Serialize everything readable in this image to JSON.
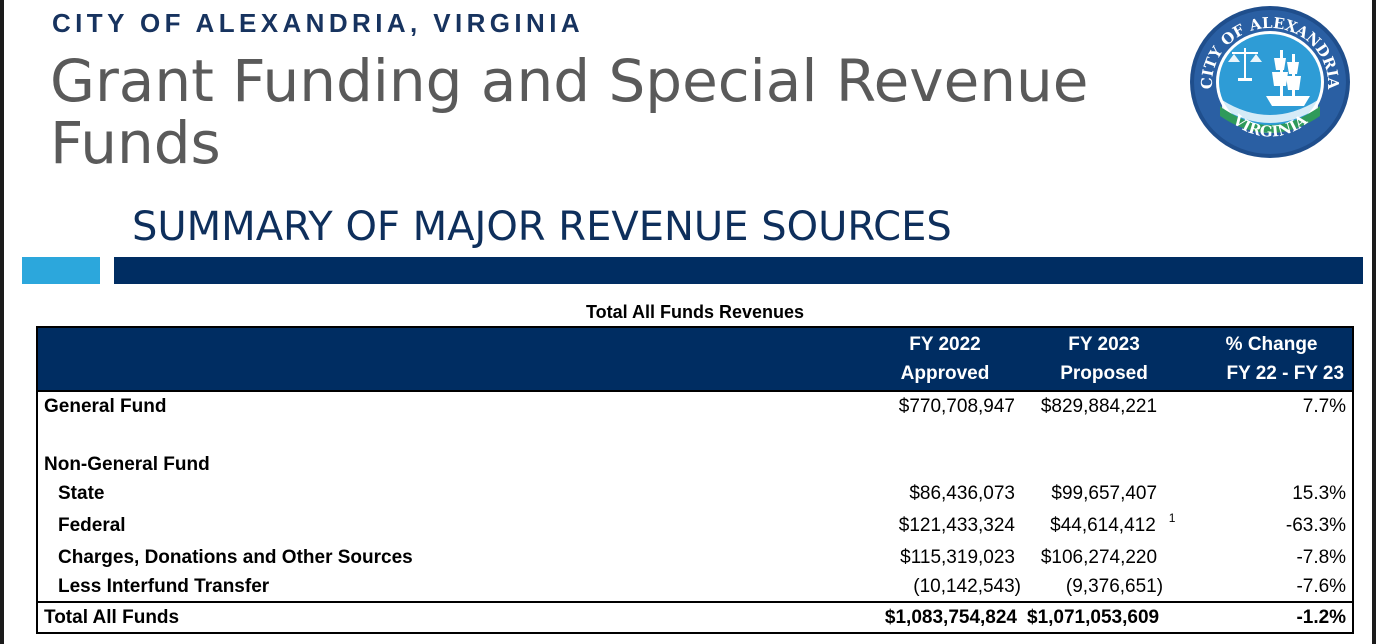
{
  "header": {
    "city_name": "CITY OF ALEXANDRIA, VIRGINIA",
    "title": "Grant Funding and Special Revenue Funds",
    "section_title": "SUMMARY OF MAJOR REVENUE SOURCES"
  },
  "seal": {
    "top_text": "CITY OF ALEXANDRIA",
    "bottom_text": "VIRGINIA",
    "colors": {
      "outer": "#1f4e8c",
      "inner": "#2e9cd6",
      "water": "#2f9a5a"
    }
  },
  "colors": {
    "accent_light": "#2ca7dc",
    "accent_dark": "#002d62",
    "title_gray": "#5a5a5a"
  },
  "table": {
    "caption": "Total All Funds Revenues",
    "headers": {
      "col1_line1": "FY 2022",
      "col1_line2": "Approved",
      "col2_line1": "FY 2023",
      "col2_line2": "Proposed",
      "col3_line1": "% Change",
      "col3_line2": "FY 22 - FY 23"
    },
    "rows": {
      "general_fund": {
        "label": "General Fund",
        "fy2022": "$770,708,947",
        "fy2023": "$829,884,221",
        "change": "7.7%"
      },
      "non_general_fund": {
        "label": "Non-General Fund"
      },
      "state": {
        "label": "State",
        "fy2022": "$86,436,073",
        "fy2023": "$99,657,407",
        "change": "15.3%"
      },
      "federal": {
        "label": "Federal",
        "fy2022": "$121,433,324",
        "fy2023": "$44,614,412",
        "footnote": "1",
        "change": "-63.3%"
      },
      "charges": {
        "label": "Charges, Donations and Other Sources",
        "fy2022": "$115,319,023",
        "fy2023": "$106,274,220",
        "change": "-7.8%"
      },
      "interfund": {
        "label": "Less Interfund Transfer",
        "fy2022": "(10,142,543)",
        "fy2023": "(9,376,651)",
        "change": "-7.6%"
      },
      "total": {
        "label": "Total All Funds",
        "fy2022": "$1,083,754,824",
        "fy2023": "$1,071,053,609",
        "change": "-1.2%"
      }
    }
  }
}
